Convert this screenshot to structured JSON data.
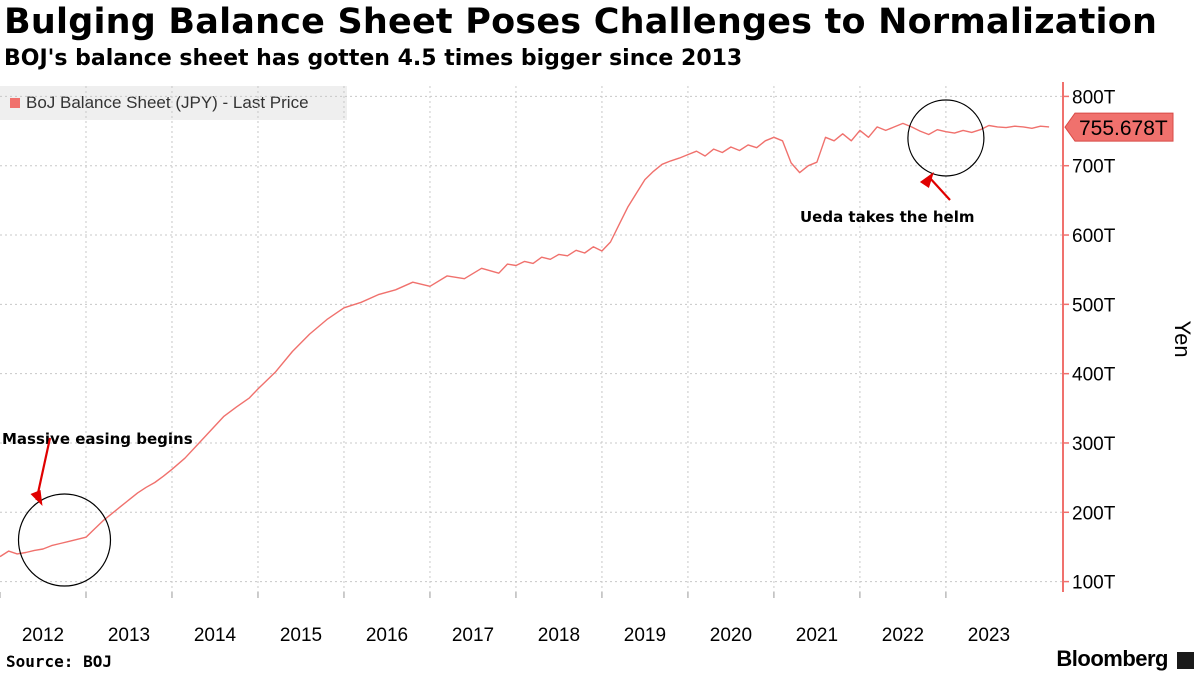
{
  "title": "Bulging Balance Sheet Poses Challenges to Normalization",
  "subtitle": "BOJ's balance sheet has gotten 4.5 times bigger since 2013",
  "source": "Source: BOJ",
  "brand": "Bloomberg",
  "chart_data": {
    "type": "line",
    "legend": "BoJ Balance Sheet (JPY) - Last Price",
    "ylabel": "Yen",
    "y_axis_side": "right",
    "ylim": [
      85,
      815
    ],
    "xlim": [
      2012.0,
      2024.35
    ],
    "y_ticks": [
      100,
      200,
      300,
      400,
      500,
      600,
      700,
      800
    ],
    "y_tick_labels": [
      "100T",
      "200T",
      "300T",
      "400T",
      "500T",
      "600T",
      "700T",
      "800T"
    ],
    "x_ticks": [
      2012,
      2013,
      2014,
      2015,
      2016,
      2017,
      2018,
      2019,
      2020,
      2021,
      2022,
      2023
    ],
    "x_tick_labels": [
      "2012",
      "2013",
      "2014",
      "2015",
      "2016",
      "2017",
      "2018",
      "2019",
      "2020",
      "2021",
      "2022",
      "2023"
    ],
    "last_value_label": "755.678T",
    "last_value": 755.678,
    "colors": {
      "line": "#f0716d",
      "label_bg": "#f0716d",
      "arrow": "#e00000",
      "axis": "#f0716d",
      "grid": "#c8c8c8"
    },
    "series": [
      {
        "name": "BoJ Balance Sheet (JPY) - Last Price",
        "x": [
          2012.0,
          2012.1,
          2012.2,
          2012.3,
          2012.4,
          2012.5,
          2012.6,
          2012.7,
          2012.8,
          2012.9,
          2013.0,
          2013.1,
          2013.2,
          2013.3,
          2013.4,
          2013.5,
          2013.6,
          2013.7,
          2013.8,
          2013.9,
          2014.0,
          2014.15,
          2014.3,
          2014.45,
          2014.6,
          2014.75,
          2014.9,
          2015.0,
          2015.2,
          2015.4,
          2015.6,
          2015.8,
          2016.0,
          2016.2,
          2016.4,
          2016.6,
          2016.8,
          2017.0,
          2017.2,
          2017.4,
          2017.6,
          2017.8,
          2017.9,
          2018.0,
          2018.1,
          2018.2,
          2018.3,
          2018.4,
          2018.5,
          2018.6,
          2018.7,
          2018.8,
          2018.9,
          2019.0,
          2019.1,
          2019.2,
          2019.3,
          2019.4,
          2019.5,
          2019.6,
          2019.7,
          2019.8,
          2019.9,
          2020.0,
          2020.1,
          2020.2,
          2020.3,
          2020.4,
          2020.5,
          2020.6,
          2020.7,
          2020.8,
          2020.9,
          2021.0,
          2021.1,
          2021.2,
          2021.3,
          2021.4,
          2021.5,
          2021.6,
          2021.7,
          2021.8,
          2021.9,
          2022.0,
          2022.1,
          2022.2,
          2022.3,
          2022.4,
          2022.5,
          2022.6,
          2022.7,
          2022.8,
          2022.9,
          2023.0,
          2023.1,
          2023.2,
          2023.3,
          2023.4,
          2023.5,
          2023.6,
          2023.7,
          2023.8,
          2023.9,
          2024.0,
          2024.1,
          2024.2
        ],
        "values": [
          136,
          144,
          140,
          142,
          145,
          147,
          152,
          155,
          158,
          161,
          164,
          176,
          188,
          198,
          208,
          218,
          228,
          236,
          243,
          252,
          262,
          278,
          298,
          318,
          338,
          352,
          365,
          378,
          402,
          432,
          457,
          478,
          495,
          503,
          514,
          521,
          532,
          526,
          541,
          537,
          552,
          545,
          558,
          556,
          562,
          559,
          568,
          565,
          572,
          570,
          578,
          574,
          583,
          577,
          590,
          615,
          640,
          660,
          680,
          692,
          702,
          707,
          711,
          716,
          721,
          714,
          724,
          719,
          727,
          722,
          730,
          726,
          736,
          741,
          736,
          704,
          690,
          700,
          705,
          741,
          736,
          746,
          736,
          751,
          741,
          756,
          751,
          756,
          761,
          756,
          750,
          745,
          752,
          749,
          747,
          751,
          748,
          752,
          758,
          756,
          755,
          757,
          756,
          754,
          757,
          756
        ]
      }
    ],
    "annotations": [
      {
        "text": "Massive easing begins",
        "x": 2012.75,
        "y": 160
      },
      {
        "text": "Ueda takes the helm",
        "x": 2023.0,
        "y": 740
      }
    ]
  }
}
